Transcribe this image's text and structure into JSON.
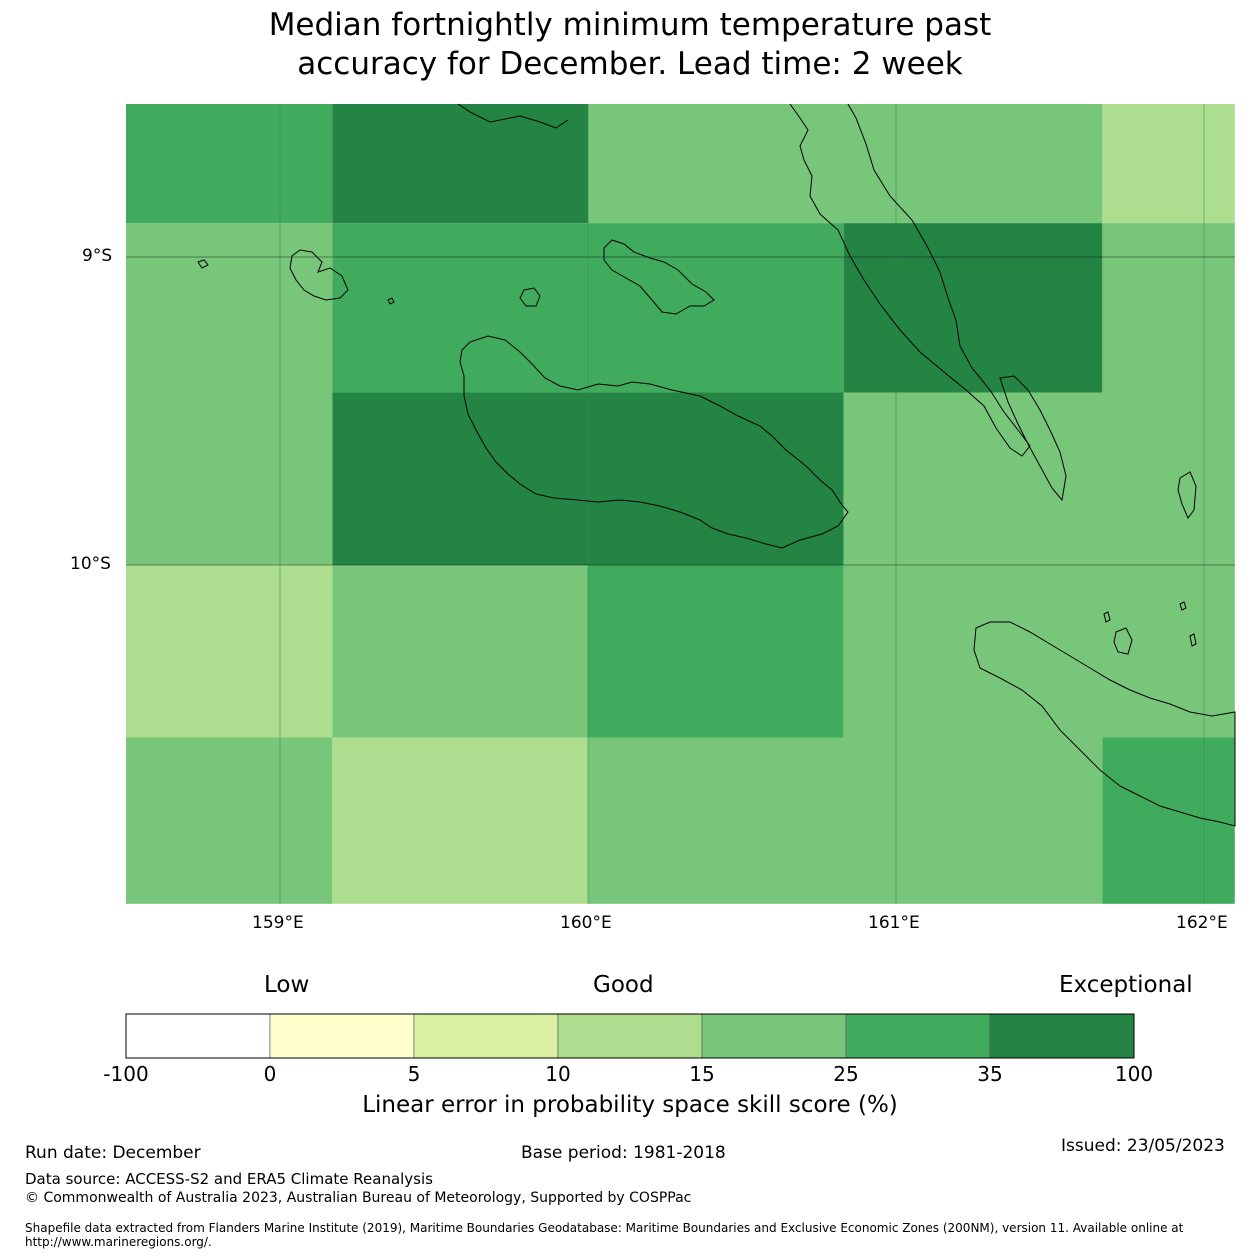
{
  "title": {
    "line1": "Median fortnightly minimum temperature past",
    "line2": "accuracy for December. Lead time: 2 week"
  },
  "map": {
    "lat_labels": [
      "9°S",
      "10°S"
    ],
    "lon_labels": [
      "159°E",
      "160°E",
      "161°E",
      "162°E"
    ],
    "extent": {
      "lon_min": 158.5,
      "lon_max": 162.1,
      "lat_top": -8.5,
      "lat_bottom": -11.1
    },
    "grid_cells": [
      {
        "lon0": 158.5,
        "lon1": 159.17,
        "lat0": -8.5,
        "lat1": -8.89,
        "cat": 5
      },
      {
        "lon0": 159.17,
        "lon1": 160.0,
        "lat0": -8.5,
        "lat1": -8.89,
        "cat": 6
      },
      {
        "lon0": 160.0,
        "lon1": 161.67,
        "lat0": -8.5,
        "lat1": -8.89,
        "cat": 4
      },
      {
        "lon0": 161.67,
        "lon1": 162.1,
        "lat0": -8.5,
        "lat1": -8.89,
        "cat": 3
      },
      {
        "lon0": 158.5,
        "lon1": 159.17,
        "lat0": -8.89,
        "lat1": -10.0,
        "cat": 4
      },
      {
        "lon0": 159.17,
        "lon1": 160.83,
        "lat0": -8.89,
        "lat1": -9.44,
        "cat": 5
      },
      {
        "lon0": 160.83,
        "lon1": 161.67,
        "lat0": -8.89,
        "lat1": -9.44,
        "cat": 6
      },
      {
        "lon0": 161.67,
        "lon1": 162.1,
        "lat0": -8.89,
        "lat1": -9.44,
        "cat": 4
      },
      {
        "lon0": 159.17,
        "lon1": 160.83,
        "lat0": -9.44,
        "lat1": -10.0,
        "cat": 6
      },
      {
        "lon0": 160.83,
        "lon1": 162.1,
        "lat0": -9.44,
        "lat1": -10.0,
        "cat": 4
      },
      {
        "lon0": 158.5,
        "lon1": 159.17,
        "lat0": -10.0,
        "lat1": -10.56,
        "cat": 3
      },
      {
        "lon0": 159.17,
        "lon1": 160.0,
        "lat0": -10.0,
        "lat1": -10.56,
        "cat": 4
      },
      {
        "lon0": 160.0,
        "lon1": 160.83,
        "lat0": -10.0,
        "lat1": -10.56,
        "cat": 5
      },
      {
        "lon0": 160.83,
        "lon1": 162.1,
        "lat0": -10.0,
        "lat1": -10.56,
        "cat": 4
      },
      {
        "lon0": 158.5,
        "lon1": 159.17,
        "lat0": -10.56,
        "lat1": -11.1,
        "cat": 4
      },
      {
        "lon0": 159.17,
        "lon1": 160.0,
        "lat0": -10.56,
        "lat1": -11.1,
        "cat": 3
      },
      {
        "lon0": 160.0,
        "lon1": 161.67,
        "lat0": -10.56,
        "lat1": -11.1,
        "cat": 4
      },
      {
        "lon0": 161.67,
        "lon1": 162.1,
        "lat0": -10.56,
        "lat1": -11.1,
        "cat": 5
      }
    ]
  },
  "colorbar": {
    "headings": {
      "low": "Low",
      "good": "Good",
      "exceptional": "Exceptional"
    },
    "ticks": [
      "-100",
      "0",
      "5",
      "10",
      "15",
      "25",
      "35",
      "100"
    ],
    "colors": [
      "#ffffff",
      "#ffffcc",
      "#d9f0a3",
      "#addd8e",
      "#78c679",
      "#41ab5d",
      "#238443"
    ],
    "label": "Linear error in probability space skill score (%)"
  },
  "footer": {
    "run_date": "Run date: December",
    "base_period": "Base period: 1981-2018",
    "issued": "Issued: 23/05/2023",
    "data_source": "Data source: ACCESS-S2 and ERA5 Climate Reanalysis",
    "copyright": "© Commonwealth of Australia 2023, Australian Bureau of Meteorology, Supported by COSPPac",
    "shapefile": "Shapefile data extracted from Flanders Marine Institute (2019), Maritime Boundaries Geodatabase: Maritime Boundaries and Exclusive Economic Zones (200NM), version 11. Available online at http://www.marineregions.org/."
  }
}
